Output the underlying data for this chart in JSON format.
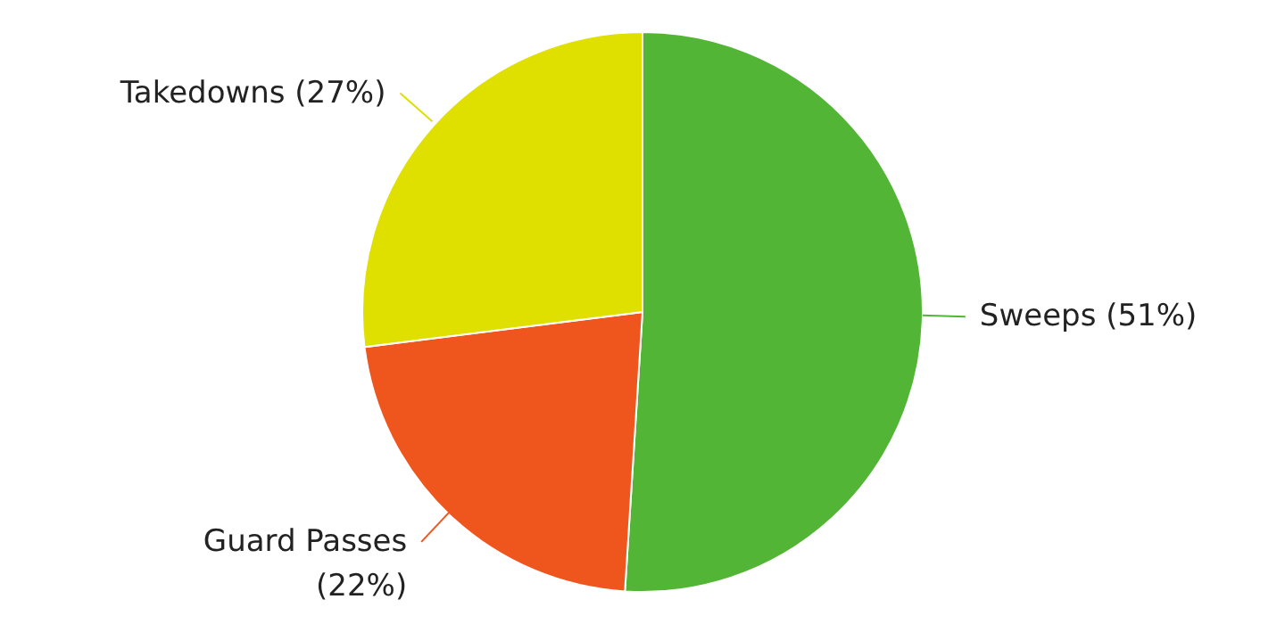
{
  "chart_data": {
    "type": "pie",
    "categories": [
      "Sweeps",
      "Guard Passes",
      "Takedowns"
    ],
    "values": [
      51,
      22,
      27
    ],
    "colors": [
      "#52b535",
      "#ef561e",
      "#dfdf00"
    ],
    "value_labels": [
      "(51%)",
      "(22%)",
      "(27%)"
    ]
  }
}
